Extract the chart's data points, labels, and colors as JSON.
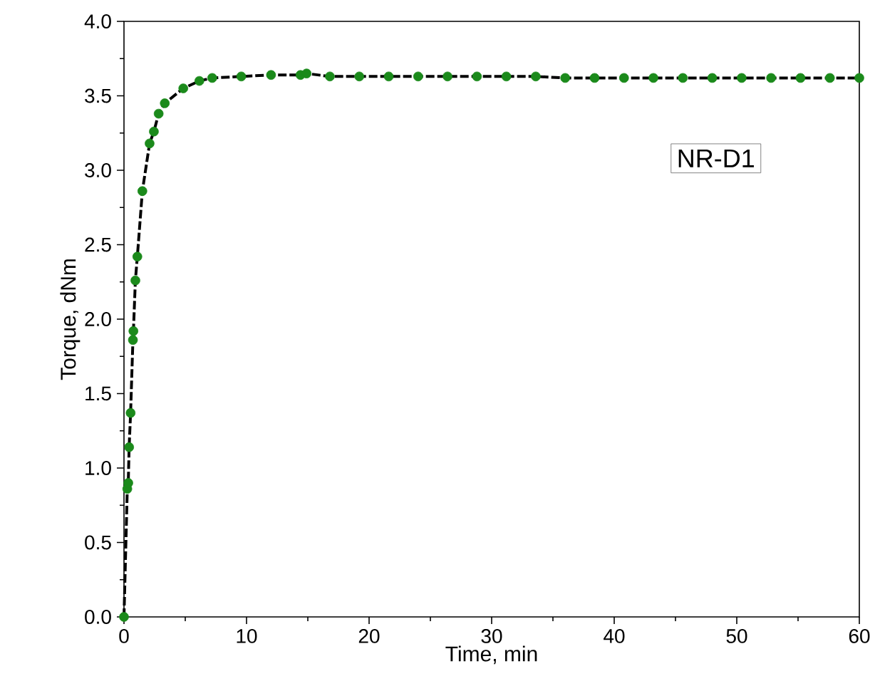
{
  "chart_data": {
    "type": "scatter",
    "xlabel": "Time, min",
    "ylabel": "Torque, dNm",
    "xlim": [
      0,
      60
    ],
    "ylim": [
      0,
      4.0
    ],
    "xticks": [
      0,
      10,
      20,
      30,
      40,
      50,
      60
    ],
    "yticks": [
      {
        "value": 0,
        "label": "0.0"
      },
      {
        "value": 0.5,
        "label": "0.5"
      },
      {
        "value": 1.0,
        "label": "1.0"
      },
      {
        "value": 1.5,
        "label": "1.5"
      },
      {
        "value": 2.0,
        "label": "2.0"
      },
      {
        "value": 2.5,
        "label": "2.5"
      },
      {
        "value": 3.0,
        "label": "3.0"
      },
      {
        "value": 3.5,
        "label": "3.5"
      },
      {
        "value": 4.0,
        "label": "4.0"
      }
    ],
    "annotations": [
      "NR-D1"
    ],
    "series": [
      {
        "type": "line",
        "color": "#000000",
        "line_style": "dashed",
        "marker": "none",
        "x": [
          0,
          0.27,
          0.35,
          0.42,
          0.54,
          0.73,
          0.77,
          0.93,
          1.09,
          1.5,
          2.09,
          2.44,
          2.83,
          3.33,
          4.84,
          6.15,
          7.2,
          9.57,
          12.0,
          14.4,
          14.9,
          16.8,
          19.2,
          21.6,
          24.0,
          26.4,
          28.8,
          31.2,
          33.6,
          36.0,
          38.4,
          40.8,
          43.2,
          45.6,
          48.0,
          50.4,
          52.8,
          55.2,
          57.6,
          60.0
        ],
        "values": [
          0,
          0.86,
          0.9,
          1.14,
          1.37,
          1.86,
          1.92,
          2.26,
          2.42,
          2.86,
          3.18,
          3.26,
          3.38,
          3.45,
          3.55,
          3.6,
          3.62,
          3.63,
          3.64,
          3.64,
          3.65,
          3.63,
          3.63,
          3.63,
          3.63,
          3.63,
          3.63,
          3.63,
          3.63,
          3.62,
          3.62,
          3.62,
          3.62,
          3.62,
          3.62,
          3.62,
          3.62,
          3.62,
          3.62,
          3.62
        ]
      },
      {
        "color": "#1b8a1b",
        "marker": "circle",
        "x": [
          0,
          0.27,
          0.35,
          0.42,
          0.54,
          0.73,
          0.77,
          0.93,
          1.09,
          1.5,
          2.09,
          2.44,
          2.83,
          3.33,
          4.84,
          6.15,
          7.2,
          9.57,
          12.0,
          14.4,
          14.9,
          16.8,
          19.2,
          21.6,
          24.0,
          26.4,
          28.8,
          31.2,
          33.6,
          36.0,
          38.4,
          40.8,
          43.2,
          45.6,
          48.0,
          50.4,
          52.8,
          55.2,
          57.6,
          60.0
        ],
        "values": [
          0,
          0.86,
          0.9,
          1.14,
          1.37,
          1.86,
          1.92,
          2.26,
          2.42,
          2.86,
          3.18,
          3.26,
          3.38,
          3.45,
          3.55,
          3.6,
          3.62,
          3.63,
          3.64,
          3.64,
          3.65,
          3.63,
          3.63,
          3.63,
          3.63,
          3.63,
          3.63,
          3.63,
          3.63,
          3.62,
          3.62,
          3.62,
          3.62,
          3.62,
          3.62,
          3.62,
          3.62,
          3.62,
          3.62,
          3.62
        ]
      }
    ]
  }
}
